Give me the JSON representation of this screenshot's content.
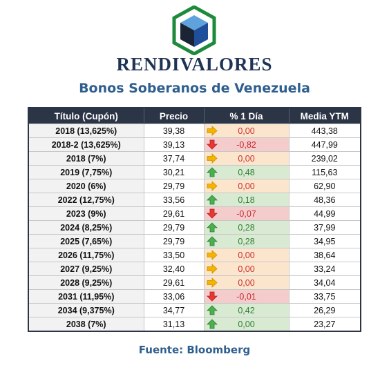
{
  "brand": "RENDIVALORES",
  "subtitle": "Bonos Soberanos de Venezuela",
  "table": {
    "headers": [
      "Título (Cupón)",
      "Precio",
      "% 1 Día",
      "Media YTM"
    ],
    "rows": [
      {
        "titulo": "2018 (13,625%)",
        "bold_year": "2018",
        "precio": "39,38",
        "var": "0,00",
        "dir": "flat",
        "media": "443,38"
      },
      {
        "titulo": "2018-2 (13,625%)",
        "bold_year": "2018-2",
        "precio": "39,13",
        "var": "-0,82",
        "dir": "down",
        "media": "447,99"
      },
      {
        "titulo": "2018 (7%)",
        "bold_year": "2018",
        "precio": "37,74",
        "var": "0,00",
        "dir": "flat",
        "media": "239,02"
      },
      {
        "titulo": "2019 (7,75%)",
        "bold_year": "2019",
        "precio": "30,21",
        "var": "0,48",
        "dir": "up",
        "media": "115,63"
      },
      {
        "titulo": "2020 (6%)",
        "bold_year": "2020",
        "precio": "29,79",
        "var": "0,00",
        "dir": "flat",
        "media": "62,90"
      },
      {
        "titulo": "2022 (12,75%)",
        "bold_year": "2022",
        "precio": "33,56",
        "var": "0,18",
        "dir": "up",
        "media": "48,36"
      },
      {
        "titulo": "2023 (9%)",
        "bold_year": "2023",
        "precio": "29,61",
        "var": "-0,07",
        "dir": "down",
        "media": "44,99"
      },
      {
        "titulo": "2024 (8,25%)",
        "bold_year": "2024",
        "precio": "29,79",
        "var": "0,28",
        "dir": "up",
        "media": "37,99"
      },
      {
        "titulo": "2025 (7,65%)",
        "bold_year": "2025",
        "precio": "29,79",
        "var": "0,28",
        "dir": "up",
        "media": "34,95"
      },
      {
        "titulo": "2026 (11,75%)",
        "bold_year": "2026",
        "precio": "33,50",
        "var": "0,00",
        "dir": "flat",
        "media": "38,64"
      },
      {
        "titulo": "2027 (9,25%)",
        "bold_year": "2027",
        "precio": "32,40",
        "var": "0,00",
        "dir": "flat",
        "media": "33,24"
      },
      {
        "titulo": "2028 (9,25%)",
        "bold_year": "2028",
        "precio": "29,61",
        "var": "0,00",
        "dir": "flat",
        "media": "34,04"
      },
      {
        "titulo": "2031 (11,95%)",
        "bold_year": "2031",
        "precio": "33,06",
        "var": "-0,01",
        "dir": "down",
        "media": "33,75"
      },
      {
        "titulo": "2034 (9,375%)",
        "bold_year": "2034",
        "precio": "34,77",
        "var": "0,42",
        "dir": "up",
        "media": "26,29"
      },
      {
        "titulo": "2038 (7%)",
        "bold_year": "2038",
        "precio": "31,13",
        "var": "0,00",
        "dir": "up",
        "media": "23,27"
      }
    ]
  },
  "source": "Fuente: Bloomberg",
  "colors": {
    "header_bg": "#2b3546",
    "up_bg": "#d9ead3",
    "down_bg": "#f4cccc",
    "flat_bg": "#fce5cd",
    "up_arrow": "#4caf50",
    "down_arrow": "#e53935",
    "flat_arrow": "#f5b400",
    "brand_text": "#1f3454",
    "subtitle_text": "#2f5f8f"
  },
  "icons": {
    "logo": "hexagon-cube-logo",
    "up": "up-arrow-icon",
    "down": "down-arrow-icon",
    "flat": "right-arrow-icon"
  }
}
